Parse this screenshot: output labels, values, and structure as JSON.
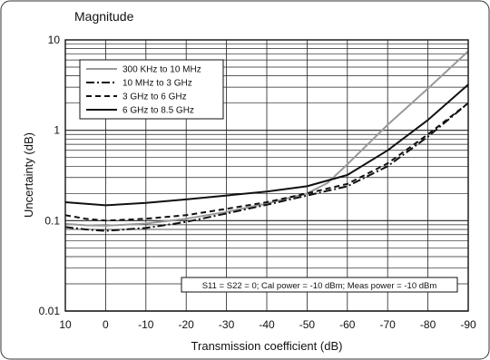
{
  "chart_data": {
    "type": "line",
    "title": "Magnitude",
    "xlabel": "Transmission coefficient (dB)",
    "ylabel": "Uncertainty (dB)",
    "x_ticks": [
      10,
      0,
      -10,
      -20,
      -30,
      -40,
      -50,
      -60,
      -70,
      -80,
      -90
    ],
    "xlim": [
      10,
      -90
    ],
    "y_scale": "log",
    "ylim": [
      0.01,
      10
    ],
    "y_ticks": [
      {
        "value": 0.01,
        "label": "0.01"
      },
      {
        "value": 0.1,
        "label": "0.1"
      },
      {
        "value": 1,
        "label": "1"
      },
      {
        "value": 10,
        "label": "10"
      }
    ],
    "grid": true,
    "legend_position": "top-left",
    "annotation": "S11 = S22 = 0; Cal power = -10 dBm; Meas power = -10 dBm",
    "series": [
      {
        "name": "300 KHz to 10 MHz",
        "style": "solid",
        "color": "#999999",
        "x": [
          10,
          5,
          0,
          -10,
          -20,
          -30,
          -40,
          -50,
          -55,
          -60,
          -70,
          -80,
          -90
        ],
        "y": [
          0.092,
          0.089,
          0.088,
          0.093,
          0.105,
          0.125,
          0.155,
          0.2,
          0.26,
          0.42,
          1.15,
          2.9,
          7.5
        ]
      },
      {
        "name": "10 MHz to 3 GHz",
        "style": "dashdot",
        "color": "#111111",
        "x": [
          10,
          5,
          0,
          -10,
          -20,
          -30,
          -40,
          -50,
          -60,
          -70,
          -80,
          -90
        ],
        "y": [
          0.085,
          0.08,
          0.077,
          0.083,
          0.097,
          0.12,
          0.15,
          0.19,
          0.24,
          0.4,
          0.85,
          2.0
        ]
      },
      {
        "name": "3 GHz to 6 GHz",
        "style": "dashed",
        "color": "#111111",
        "x": [
          10,
          5,
          0,
          -10,
          -20,
          -30,
          -40,
          -50,
          -60,
          -70,
          -80,
          -90
        ],
        "y": [
          0.115,
          0.105,
          0.1,
          0.105,
          0.115,
          0.135,
          0.16,
          0.2,
          0.255,
          0.43,
          0.9,
          2.0
        ]
      },
      {
        "name": "6 GHz to 8.5 GHz",
        "style": "solid",
        "color": "#111111",
        "x": [
          10,
          0,
          -10,
          -20,
          -30,
          -40,
          -50,
          -60,
          -70,
          -80,
          -90
        ],
        "y": [
          0.16,
          0.148,
          0.157,
          0.172,
          0.19,
          0.21,
          0.24,
          0.32,
          0.6,
          1.3,
          3.2
        ]
      }
    ]
  }
}
